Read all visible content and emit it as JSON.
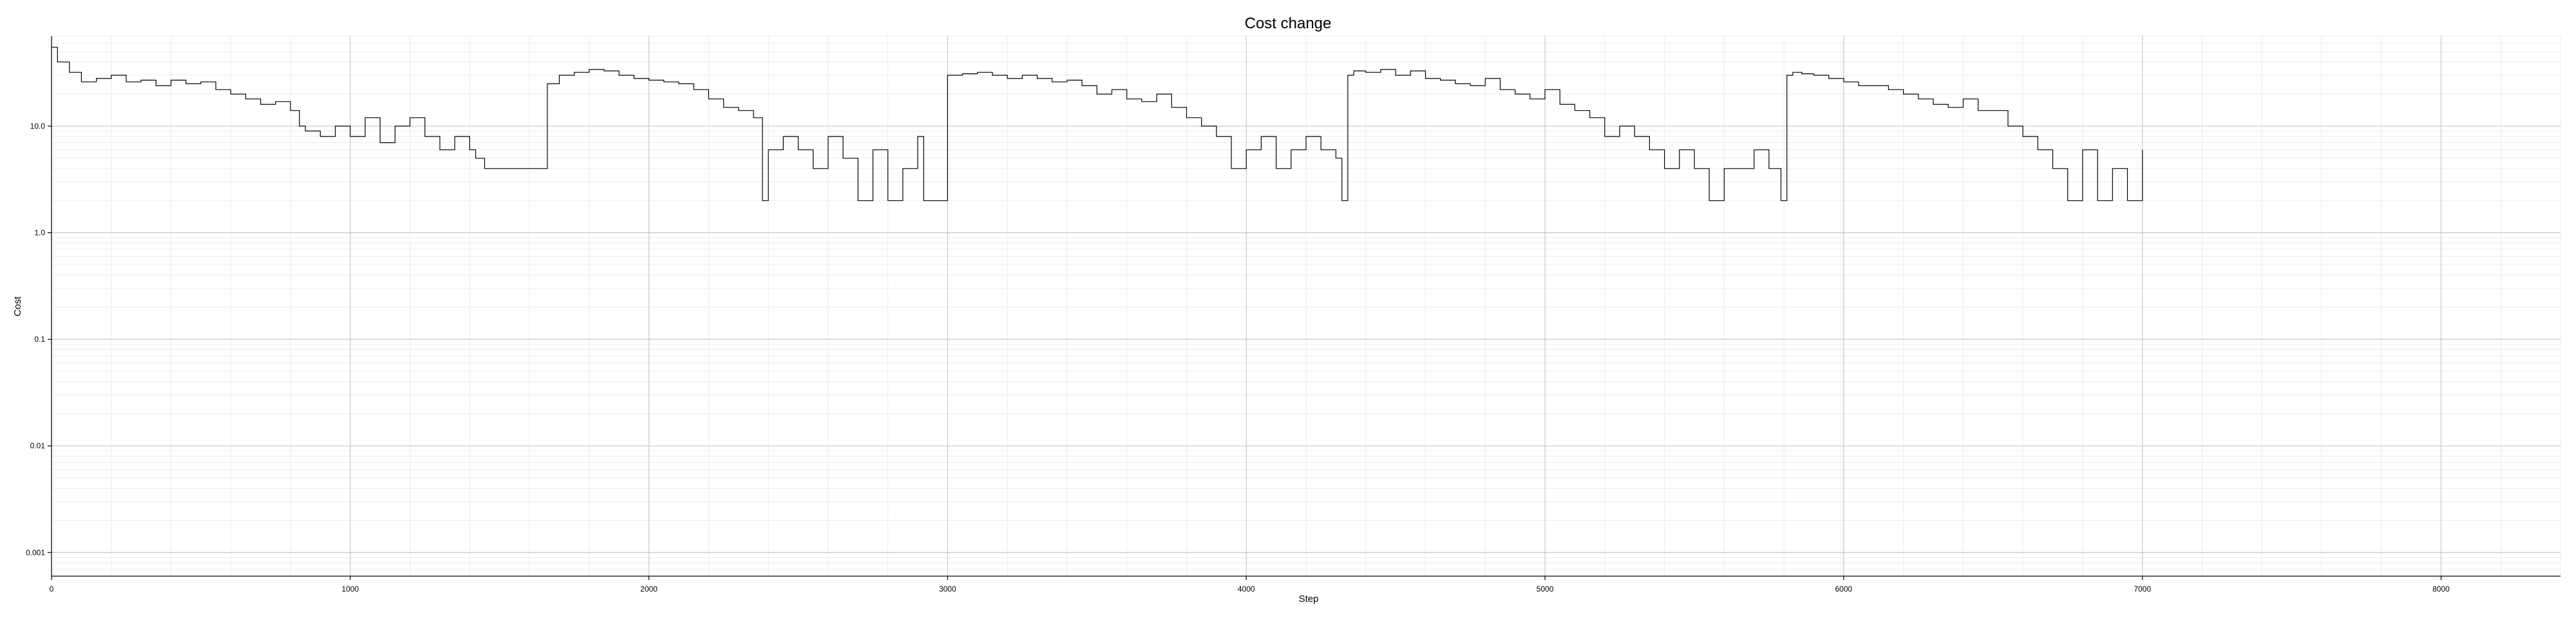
{
  "chart_data": {
    "type": "line",
    "title": "Cost change",
    "xlabel": "Step",
    "ylabel": "Cost",
    "xlim": [
      0,
      8400
    ],
    "ylim": [
      0.0006,
      70
    ],
    "yscale": "log",
    "grid": true,
    "legend": "none",
    "line_color": "#000000",
    "x_ticks": [
      0,
      1000,
      2000,
      3000,
      4000,
      5000,
      6000,
      7000,
      8000
    ],
    "x_tick_labels": [
      "0",
      "1000",
      "2000",
      "3000",
      "4000",
      "5000",
      "6000",
      "7000",
      "8000"
    ],
    "y_ticks": [
      0.001,
      0.01,
      0.1,
      1.0,
      10.0
    ],
    "y_tick_labels": [
      "0.001",
      "0.01",
      "0.1",
      "1.0",
      "10.0"
    ],
    "series": [
      {
        "x": [
          0,
          20,
          60,
          100,
          150,
          200,
          250,
          300,
          350,
          400,
          450,
          500,
          550,
          600,
          650,
          700,
          750,
          800,
          830,
          850,
          900,
          950,
          1000,
          1050,
          1100,
          1150,
          1200,
          1250,
          1300,
          1350,
          1400,
          1420,
          1450,
          1500,
          1550,
          1600,
          1640,
          1660,
          1700,
          1750,
          1800,
          1850,
          1900,
          1950,
          2000,
          2050,
          2100,
          2150,
          2200,
          2250,
          2300,
          2350,
          2380,
          2400,
          2450,
          2500,
          2550,
          2600,
          2650,
          2700,
          2750,
          2800,
          2850,
          2900,
          2920,
          2940,
          2960,
          3000,
          3050,
          3100,
          3150,
          3200,
          3250,
          3300,
          3350,
          3400,
          3450,
          3500,
          3550,
          3600,
          3650,
          3700,
          3750,
          3800,
          3850,
          3900,
          3950,
          4000,
          4050,
          4100,
          4150,
          4200,
          4250,
          4300,
          4320,
          4340,
          4360,
          4400,
          4450,
          4500,
          4550,
          4600,
          4650,
          4700,
          4750,
          4800,
          4850,
          4900,
          4950,
          5000,
          5050,
          5100,
          5150,
          5200,
          5250,
          5300,
          5350,
          5400,
          5450,
          5500,
          5550,
          5600,
          5650,
          5700,
          5750,
          5790,
          5810,
          5830,
          5860,
          5900,
          5950,
          6000,
          6050,
          6100,
          6150,
          6200,
          6250,
          6300,
          6350,
          6400,
          6450,
          6500,
          6550,
          6600,
          6650,
          6700,
          6720,
          6750,
          6800,
          6850,
          6900,
          6950,
          7000
        ],
        "y": [
          55,
          40,
          32,
          26,
          28,
          30,
          26,
          27,
          24,
          27,
          25,
          26,
          22,
          20,
          18,
          16,
          17,
          14,
          10,
          9,
          8,
          10,
          8,
          12,
          7,
          10,
          12,
          8,
          6,
          8,
          6,
          5,
          4,
          4,
          4,
          4,
          4,
          25,
          30,
          32,
          34,
          33,
          30,
          28,
          27,
          26,
          25,
          22,
          18,
          15,
          14,
          12,
          2,
          6,
          8,
          6,
          4,
          8,
          5,
          2,
          6,
          2,
          4,
          8,
          2,
          2,
          2,
          30,
          31,
          32,
          30,
          28,
          30,
          28,
          26,
          27,
          24,
          20,
          22,
          18,
          17,
          20,
          15,
          12,
          10,
          8,
          4,
          6,
          8,
          4,
          6,
          8,
          6,
          5,
          2,
          30,
          33,
          32,
          34,
          30,
          33,
          28,
          27,
          25,
          24,
          28,
          22,
          20,
          18,
          22,
          16,
          14,
          12,
          8,
          10,
          8,
          6,
          4,
          6,
          4,
          2,
          4,
          4,
          6,
          4,
          2,
          30,
          32,
          31,
          30,
          28,
          26,
          24,
          24,
          22,
          20,
          18,
          16,
          15,
          18,
          14,
          14,
          10,
          8,
          6,
          4,
          4,
          2,
          6,
          2,
          4,
          2,
          6
        ]
      }
    ]
  }
}
